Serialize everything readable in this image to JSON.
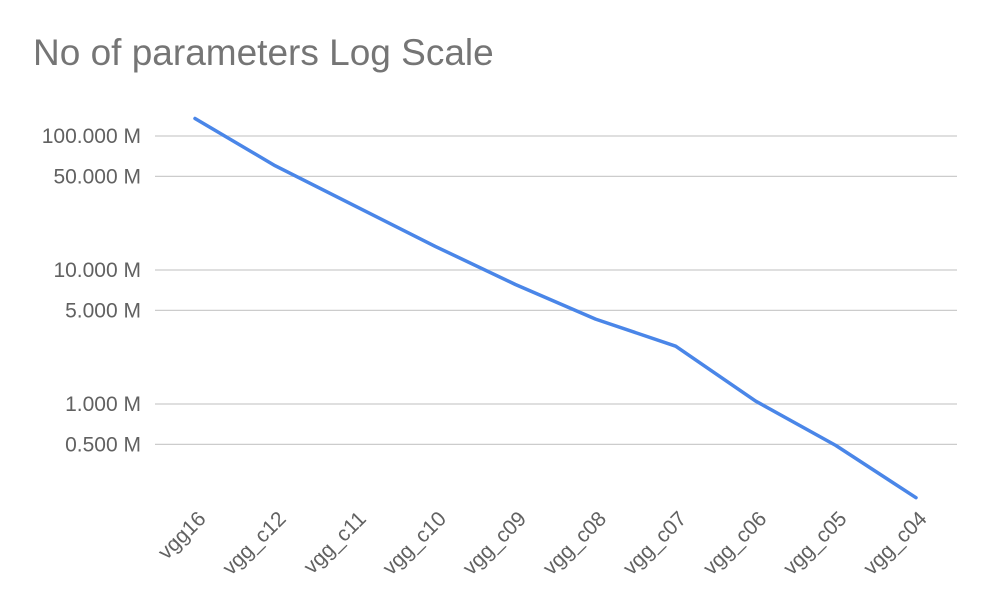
{
  "chart_data": {
    "type": "line",
    "title": "No of parameters Log Scale",
    "xlabel": "",
    "ylabel": "",
    "y_scale": "log",
    "ylim": [
      0.2,
      140
    ],
    "grid": true,
    "legend": "none",
    "categories": [
      "vgg16",
      "vgg_c12",
      "vgg_c11",
      "vgg_c10",
      "vgg_c09",
      "vgg_c08",
      "vgg_c07",
      "vgg_c06",
      "vgg_c05",
      "vgg_c04"
    ],
    "series": [
      {
        "values": [
          135,
          60,
          30,
          15,
          7.8,
          4.3,
          2.7,
          1.05,
          0.49,
          0.2
        ],
        "color": "#4a86e8"
      }
    ],
    "y_ticks": [
      {
        "value": 100,
        "label": "100.000 M"
      },
      {
        "value": 50,
        "label": "50.000 M"
      },
      {
        "value": 10,
        "label": "10.000 M"
      },
      {
        "value": 5,
        "label": "5.000 M"
      },
      {
        "value": 1,
        "label": "1.000 M"
      },
      {
        "value": 0.5,
        "label": "0.500 M"
      }
    ]
  }
}
